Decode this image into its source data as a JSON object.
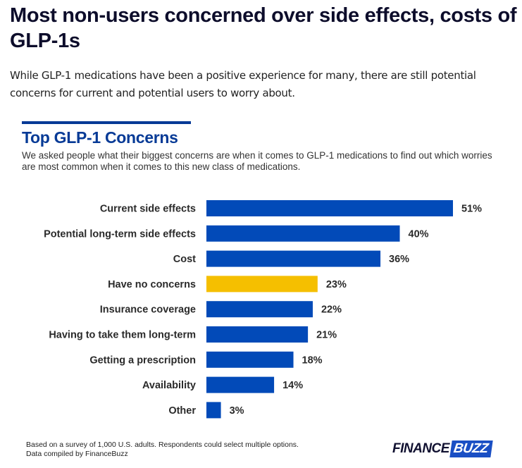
{
  "headline": "Most non-users concerned over side effects, costs of GLP-1s",
  "intro": "While GLP-1 medications have been a positive experience for many, there are still potential concerns for current and potential users to worry about.",
  "footnote": {
    "line1": "Based on a survey of 1,000 U.S. adults. Respondents could select multiple options.",
    "line2": "Data compiled by FinanceBuzz"
  },
  "logo": {
    "part1": "FINANCE",
    "part2": "BUZZ"
  },
  "colors": {
    "primary": "#024ab8",
    "highlight": "#f5bf00",
    "title": "#063a96"
  },
  "chart_data": {
    "type": "bar",
    "orientation": "horizontal",
    "title": "Top GLP-1 Concerns",
    "subtitle": "We asked people what their biggest concerns are when it comes to GLP-1 medications to find out which worries are most common when it comes to this new class of medications.",
    "xlabel": "",
    "ylabel": "",
    "unit": "%",
    "xlim": [
      0,
      51
    ],
    "grid": false,
    "legend": "none",
    "categories": [
      "Current side effects",
      "Potential long-term side effects",
      "Cost",
      "Have no concerns",
      "Insurance coverage",
      "Having to take them long-term",
      "Getting a prescription",
      "Availability",
      "Other"
    ],
    "values": [
      51,
      40,
      36,
      23,
      22,
      21,
      18,
      14,
      3
    ],
    "labels": [
      "51%",
      "40%",
      "36%",
      "23%",
      "22%",
      "21%",
      "18%",
      "14%",
      "3%"
    ],
    "highlighted": [
      "Have no concerns"
    ]
  }
}
